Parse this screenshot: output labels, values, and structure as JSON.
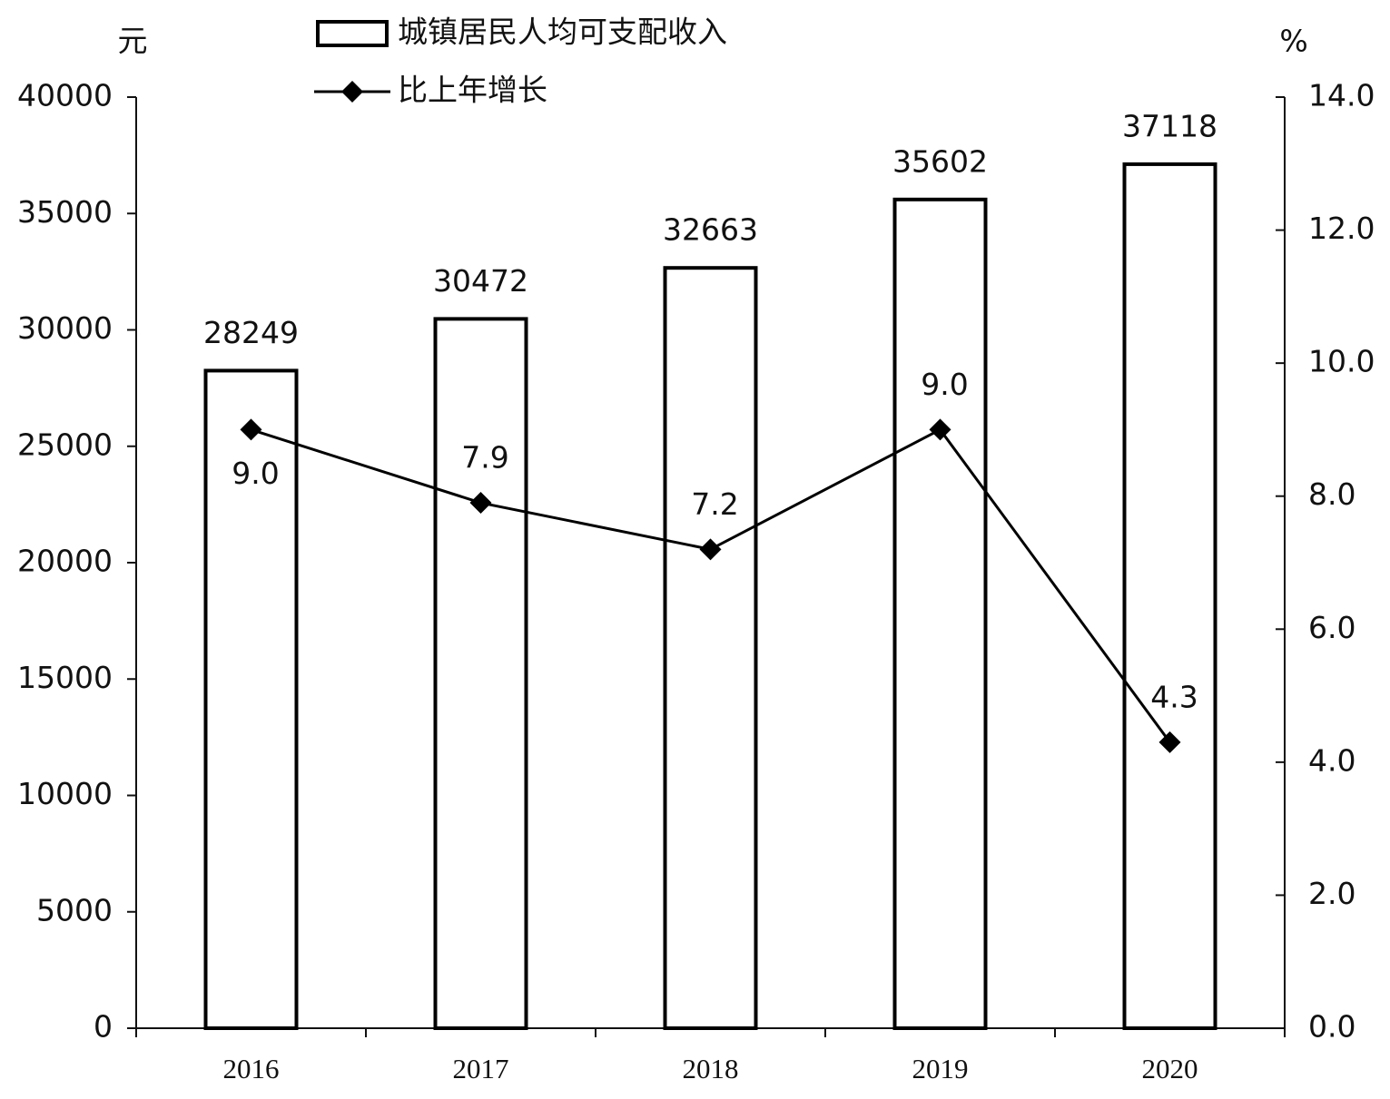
{
  "chart_data": {
    "type": "bar",
    "ylabel": "元",
    "y2label": "%",
    "categories": [
      "2016",
      "2017",
      "2018",
      "2019",
      "2020"
    ],
    "series": [
      {
        "name": "城镇居民人均可支配收入",
        "type": "bar",
        "color": "#000000",
        "values": [
          28249,
          30472,
          32663,
          35602,
          37118
        ]
      },
      {
        "name": "比上年增长",
        "type": "line",
        "axis": "y2",
        "color": "#000000",
        "values": [
          9.0,
          7.9,
          7.2,
          9.0,
          4.3
        ],
        "value_labels": [
          "9.0",
          "7.9",
          "7.2",
          "9.0",
          "4.3"
        ]
      }
    ],
    "ylim": [
      0,
      40000
    ],
    "yticks": [
      0,
      5000,
      10000,
      15000,
      20000,
      25000,
      30000,
      35000,
      40000
    ],
    "y2lim": [
      0,
      14
    ],
    "y2ticks": [
      {
        "value": 0,
        "label": "0.0"
      },
      {
        "value": 2,
        "label": "2.0"
      },
      {
        "value": 4,
        "label": "4.0"
      },
      {
        "value": 6,
        "label": "6.0"
      },
      {
        "value": 8,
        "label": "8.0"
      },
      {
        "value": 10,
        "label": "10.0"
      },
      {
        "value": 12,
        "label": "12.0"
      },
      {
        "value": 14,
        "label": "14.0"
      }
    ]
  }
}
